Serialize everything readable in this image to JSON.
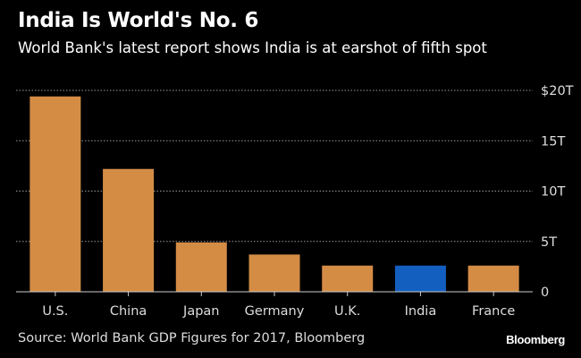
{
  "chart_data": {
    "type": "bar",
    "title": "India Is World's No. 6",
    "subtitle": "World Bank's latest report shows India is at earshot of fifth spot",
    "categories": [
      "U.S.",
      "China",
      "Japan",
      "Germany",
      "U.K.",
      "India",
      "France"
    ],
    "values": [
      19.4,
      12.2,
      4.9,
      3.7,
      2.6,
      2.6,
      2.6
    ],
    "unit": "trillion USD",
    "ylim": [
      0,
      20
    ],
    "yticks": [
      0,
      5,
      10,
      15,
      20
    ],
    "ytick_labels": [
      "0",
      "5T",
      "10T",
      "15T",
      "$20T"
    ],
    "xlabel": "",
    "ylabel": "",
    "grid": true,
    "highlight": "India",
    "colors": {
      "default": "#D48C45",
      "highlight": "#135FC0",
      "background": "#000000"
    },
    "source": "Source: World Bank GDP Figures for 2017, Bloomberg",
    "brand": "Bloomberg"
  }
}
